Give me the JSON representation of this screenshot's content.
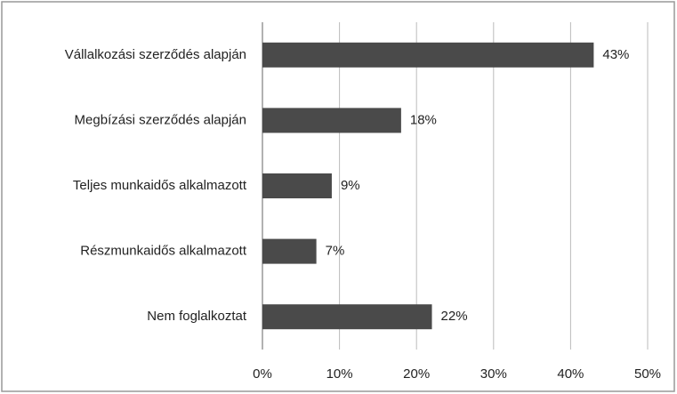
{
  "chart_data": {
    "type": "bar",
    "orientation": "horizontal",
    "categories": [
      "Vállalkozási szerződés alapján",
      "Megbízási szerződés alapján",
      "Teljes munkaidős alkalmazott",
      "Részmunkaidős alkalmazott",
      "Nem foglalkoztat"
    ],
    "values": [
      43,
      18,
      9,
      7,
      22
    ],
    "value_labels": [
      "43%",
      "18%",
      "9%",
      "7%",
      "22%"
    ],
    "color": "#4a4a4a",
    "xlim": [
      0,
      50
    ],
    "xticks": [
      {
        "value": 0,
        "label": "0%"
      },
      {
        "value": 10,
        "label": "10%"
      },
      {
        "value": 20,
        "label": "20%"
      },
      {
        "value": 30,
        "label": "30%"
      },
      {
        "value": 40,
        "label": "40%"
      },
      {
        "value": 50,
        "label": "50%"
      }
    ],
    "grid": true
  }
}
